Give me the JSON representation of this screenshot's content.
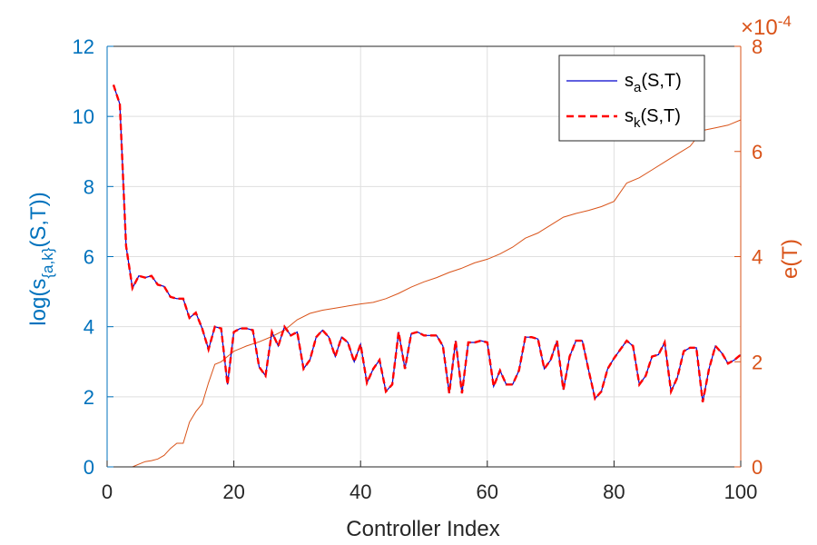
{
  "chart_data": {
    "type": "line",
    "xlabel": "Controller Index",
    "ylabel_left_prefix": "log(s",
    "ylabel_left_sub": "{a,k}",
    "ylabel_left_suffix": "(S,T))",
    "ylabel_right": "e(T)",
    "right_axis_multiplier_symbol": "×",
    "right_axis_multiplier_base": "10",
    "right_axis_multiplier_exp": "-4",
    "xlim": [
      0,
      100
    ],
    "ylim_left": [
      0,
      12
    ],
    "ylim_right": [
      0,
      8
    ],
    "x_ticks": [
      "0",
      "20",
      "40",
      "60",
      "80",
      "100"
    ],
    "y_left_ticks": [
      "0",
      "2",
      "4",
      "6",
      "8",
      "10",
      "12"
    ],
    "y_right_ticks": [
      "0",
      "2",
      "4",
      "6",
      "8"
    ],
    "grid": true,
    "legend_position": "top-right",
    "colors": {
      "left_axis": "#0072BD",
      "right_axis": "#D95319",
      "s_a": "#0000CC",
      "s_k": "#FF0000",
      "e": "#D95319",
      "grid": "#DFDFDF"
    },
    "legend": [
      {
        "base": "s",
        "sub": "a",
        "suffix": "(S,T)"
      },
      {
        "base": "s",
        "sub": "k",
        "suffix": "(S,T)"
      }
    ],
    "series": [
      {
        "key": "s_a",
        "axis": "left",
        "style": "solid",
        "x": [
          1,
          2,
          3,
          4,
          5,
          6,
          7,
          8,
          9,
          10,
          11,
          12,
          13,
          14,
          15,
          16,
          17,
          18,
          19,
          20,
          21,
          22,
          23,
          24,
          25,
          26,
          27,
          28,
          29,
          30,
          31,
          32,
          33,
          34,
          35,
          36,
          37,
          38,
          39,
          40,
          41,
          42,
          43,
          44,
          45,
          46,
          47,
          48,
          49,
          50,
          51,
          52,
          53,
          54,
          55,
          56,
          57,
          58,
          59,
          60,
          61,
          62,
          63,
          64,
          65,
          66,
          67,
          68,
          69,
          70,
          71,
          72,
          73,
          74,
          75,
          76,
          77,
          78,
          79,
          80,
          81,
          82,
          83,
          84,
          85,
          86,
          87,
          88,
          89,
          90,
          91,
          92,
          93,
          94,
          95,
          96,
          97,
          98,
          99,
          100
        ],
        "values": [
          10.9,
          10.35,
          6.3,
          5.1,
          5.45,
          5.4,
          5.45,
          5.2,
          5.15,
          4.85,
          4.8,
          4.8,
          4.25,
          4.4,
          3.95,
          3.35,
          4.0,
          3.95,
          2.35,
          3.85,
          3.95,
          3.95,
          3.9,
          2.85,
          2.6,
          3.85,
          3.45,
          4.0,
          3.75,
          3.85,
          2.8,
          3.05,
          3.7,
          3.9,
          3.7,
          3.15,
          3.7,
          3.55,
          3.0,
          3.5,
          2.4,
          2.8,
          3.05,
          2.15,
          2.35,
          3.85,
          2.8,
          3.8,
          3.85,
          3.75,
          3.75,
          3.75,
          3.45,
          2.1,
          3.6,
          2.1,
          3.55,
          3.55,
          3.6,
          3.55,
          2.3,
          2.75,
          2.35,
          2.35,
          2.75,
          3.7,
          3.7,
          3.65,
          2.8,
          3.05,
          3.6,
          2.2,
          3.15,
          3.6,
          3.6,
          2.75,
          1.95,
          2.15,
          2.8,
          3.1,
          3.35,
          3.6,
          3.45,
          2.35,
          2.6,
          3.15,
          3.2,
          3.55,
          2.15,
          2.55,
          3.3,
          3.4,
          3.4,
          1.85,
          2.8,
          3.45,
          3.25,
          2.95,
          3.05,
          3.2
        ]
      },
      {
        "key": "s_k",
        "axis": "left",
        "style": "dashed",
        "x": [
          1,
          2,
          3,
          4,
          5,
          6,
          7,
          8,
          9,
          10,
          11,
          12,
          13,
          14,
          15,
          16,
          17,
          18,
          19,
          20,
          21,
          22,
          23,
          24,
          25,
          26,
          27,
          28,
          29,
          30,
          31,
          32,
          33,
          34,
          35,
          36,
          37,
          38,
          39,
          40,
          41,
          42,
          43,
          44,
          45,
          46,
          47,
          48,
          49,
          50,
          51,
          52,
          53,
          54,
          55,
          56,
          57,
          58,
          59,
          60,
          61,
          62,
          63,
          64,
          65,
          66,
          67,
          68,
          69,
          70,
          71,
          72,
          73,
          74,
          75,
          76,
          77,
          78,
          79,
          80,
          81,
          82,
          83,
          84,
          85,
          86,
          87,
          88,
          89,
          90,
          91,
          92,
          93,
          94,
          95,
          96,
          97,
          98,
          99,
          100
        ],
        "values": [
          10.9,
          10.35,
          6.3,
          5.1,
          5.45,
          5.4,
          5.45,
          5.2,
          5.15,
          4.85,
          4.8,
          4.8,
          4.25,
          4.4,
          3.95,
          3.35,
          4.0,
          3.95,
          2.35,
          3.85,
          3.95,
          3.95,
          3.9,
          2.85,
          2.6,
          3.85,
          3.45,
          4.0,
          3.75,
          3.85,
          2.8,
          3.05,
          3.7,
          3.9,
          3.7,
          3.15,
          3.7,
          3.55,
          3.0,
          3.5,
          2.4,
          2.8,
          3.05,
          2.15,
          2.35,
          3.85,
          2.8,
          3.8,
          3.85,
          3.75,
          3.75,
          3.75,
          3.45,
          2.1,
          3.6,
          2.1,
          3.55,
          3.55,
          3.6,
          3.55,
          2.3,
          2.75,
          2.35,
          2.35,
          2.75,
          3.7,
          3.7,
          3.65,
          2.8,
          3.05,
          3.6,
          2.2,
          3.15,
          3.6,
          3.6,
          2.75,
          1.95,
          2.15,
          2.8,
          3.1,
          3.35,
          3.6,
          3.45,
          2.35,
          2.6,
          3.15,
          3.2,
          3.55,
          2.15,
          2.55,
          3.3,
          3.4,
          3.4,
          1.85,
          2.8,
          3.45,
          3.25,
          2.95,
          3.05,
          3.2
        ]
      },
      {
        "key": "e",
        "axis": "right",
        "style": "solid",
        "x": [
          4,
          5,
          6,
          7,
          8,
          9,
          10,
          11,
          12,
          13,
          14,
          15,
          16,
          17,
          18,
          19,
          20,
          21,
          22,
          24,
          26,
          28,
          30,
          32,
          34,
          36,
          38,
          40,
          42,
          44,
          46,
          48,
          50,
          52,
          54,
          56,
          58,
          60,
          62,
          64,
          66,
          68,
          70,
          72,
          74,
          76,
          78,
          80,
          82,
          84,
          86,
          88,
          90,
          92,
          94,
          96,
          98,
          100
        ],
        "values": [
          0.0,
          0.05,
          0.1,
          0.12,
          0.15,
          0.22,
          0.35,
          0.45,
          0.45,
          0.85,
          1.05,
          1.2,
          1.6,
          1.95,
          2.0,
          2.1,
          2.2,
          2.25,
          2.3,
          2.38,
          2.48,
          2.6,
          2.8,
          2.92,
          2.98,
          3.02,
          3.06,
          3.1,
          3.13,
          3.2,
          3.3,
          3.42,
          3.52,
          3.6,
          3.7,
          3.78,
          3.88,
          3.95,
          4.05,
          4.18,
          4.35,
          4.45,
          4.6,
          4.75,
          4.82,
          4.88,
          4.95,
          5.05,
          5.4,
          5.5,
          5.65,
          5.8,
          5.95,
          6.1,
          6.4,
          6.45,
          6.5,
          6.6
        ]
      }
    ]
  }
}
